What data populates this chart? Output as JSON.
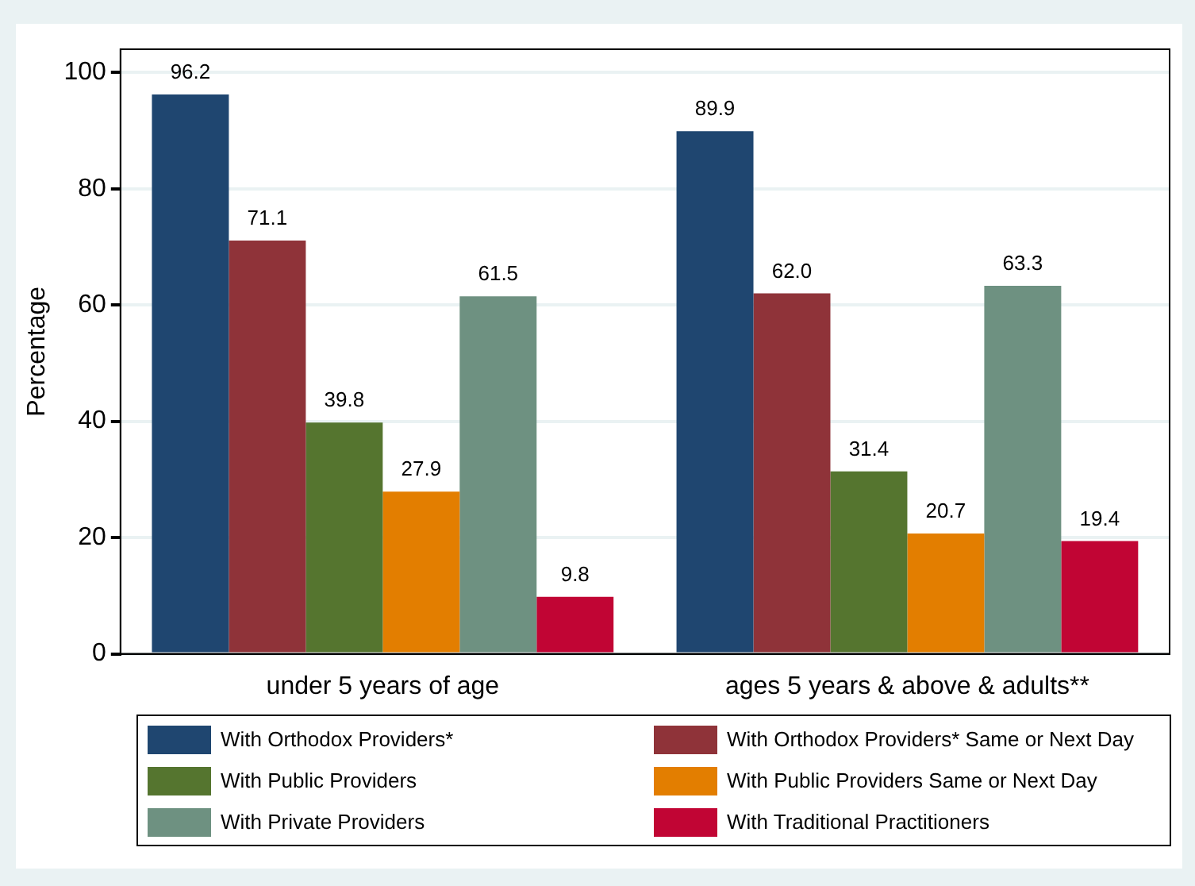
{
  "chart_data": {
    "type": "bar",
    "ylabel": "Percentage",
    "categories": [
      "under 5 years of age",
      "ages 5 years & above & adults**"
    ],
    "series": [
      {
        "name": "With Orthodox Providers*",
        "color": "#1f4670",
        "values": [
          96.2,
          89.9
        ]
      },
      {
        "name": "With Orthodox Providers* Same or Next Day",
        "color": "#8f3339",
        "values": [
          71.1,
          62.0
        ]
      },
      {
        "name": "With Public Providers",
        "color": "#55752f",
        "values": [
          39.8,
          31.4
        ]
      },
      {
        "name": "With Public Providers Same or Next Day",
        "color": "#e37e00",
        "values": [
          27.9,
          20.7
        ]
      },
      {
        "name": "With Private Providers",
        "color": "#6e9181",
        "values": [
          61.5,
          63.3
        ]
      },
      {
        "name": "With Traditional Practitioners",
        "color": "#c10534",
        "values": [
          9.8,
          19.4
        ]
      }
    ],
    "value_labels": [
      [
        "96.2",
        "89.9"
      ],
      [
        "71.1",
        "62.0"
      ],
      [
        "39.8",
        "31.4"
      ],
      [
        "27.9",
        "20.7"
      ],
      [
        "61.5",
        "63.3"
      ],
      [
        "9.8",
        "19.4"
      ]
    ],
    "ylim": [
      0,
      104
    ],
    "yticks": [
      0,
      20,
      40,
      60,
      80,
      100
    ],
    "grid": "y",
    "legend": "bottom"
  }
}
